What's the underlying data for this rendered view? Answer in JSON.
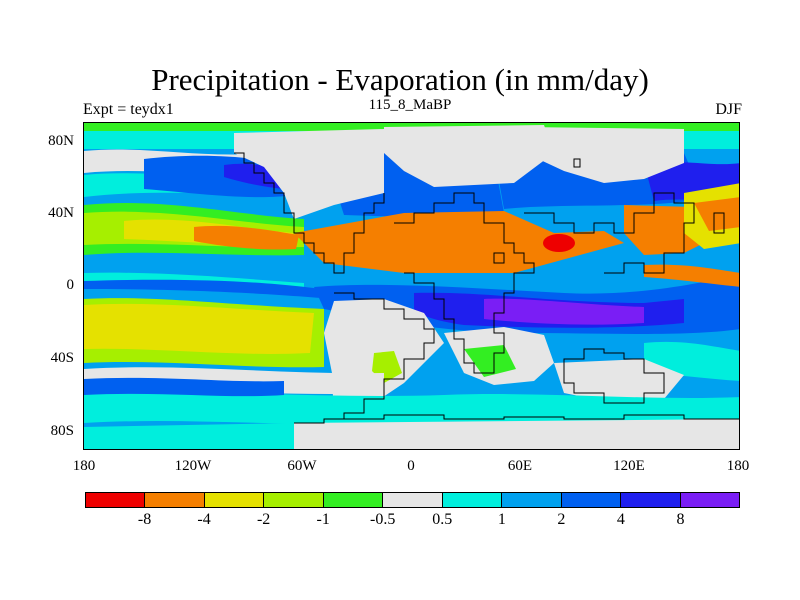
{
  "title": "Precipitation - Evaporation (in mm/day)",
  "subtitle_left": "Expt = teydx1",
  "subtitle_center": "115_8_MaBP",
  "subtitle_right": "DJF",
  "y_ticks": [
    "80N",
    "40N",
    "0",
    "40S",
    "80S"
  ],
  "x_ticks": [
    "180",
    "120W",
    "60W",
    "0",
    "60E",
    "120E",
    "180"
  ],
  "colorbar": {
    "colors": [
      "#ee0000",
      "#f57f00",
      "#e5e100",
      "#a6ef00",
      "#33ee22",
      "#e6e6e6",
      "#00eedd",
      "#00a1ef",
      "#0060f0",
      "#1f1fee",
      "#7a1ef5"
    ],
    "labels": [
      "-8",
      "-4",
      "-2",
      "-1",
      "-0.5",
      "0.5",
      "1",
      "2",
      "4",
      "8"
    ]
  },
  "colors": {
    "red": "#ee0000",
    "orange": "#f57f00",
    "yellow": "#e5e100",
    "yellowgreen": "#a6ef00",
    "green": "#33ee22",
    "grey": "#e6e6e6",
    "cyan": "#00eedd",
    "lightblue": "#00a1ef",
    "blue": "#0060f0",
    "darkblue": "#1f1fee",
    "purple": "#7a1ef5",
    "outline": "#000000"
  }
}
